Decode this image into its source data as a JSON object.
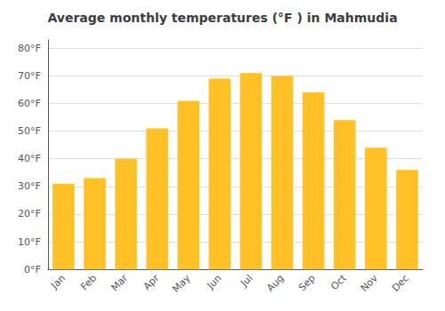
{
  "chart_data": {
    "type": "bar",
    "title": "Average monthly temperatures (°F ) in Mahmudia",
    "categories": [
      "Jan",
      "Feb",
      "Mar",
      "Apr",
      "May",
      "Jun",
      "Jul",
      "Aug",
      "Sep",
      "Oct",
      "Nov",
      "Dec"
    ],
    "values": [
      31,
      33,
      40,
      51,
      61,
      69,
      71,
      70,
      64,
      54,
      44,
      36
    ],
    "color": "#FFC125",
    "ylim": [
      0,
      83
    ],
    "yticks": [
      {
        "value": 0,
        "label": "0°F"
      },
      {
        "value": 10,
        "label": "10°F"
      },
      {
        "value": 20,
        "label": "20°F"
      },
      {
        "value": 30,
        "label": "30°F"
      },
      {
        "value": 40,
        "label": "40°F"
      },
      {
        "value": 50,
        "label": "50°F"
      },
      {
        "value": 60,
        "label": "60°F"
      },
      {
        "value": 70,
        "label": "70°F"
      },
      {
        "value": 80,
        "label": "80°F"
      }
    ],
    "grid": true
  }
}
